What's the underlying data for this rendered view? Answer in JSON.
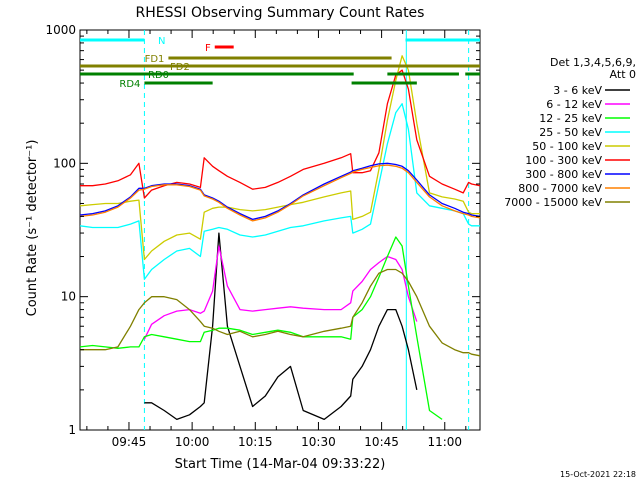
{
  "chart_data": {
    "type": "line",
    "title": "RHESSI Observing Summary Count Rates",
    "xlabel": "Start Time (14-Mar-04 09:33:22)",
    "ylabel": "Count Rate (s⁻¹ detector⁻¹)",
    "y_scale": "log",
    "ylim": [
      1,
      1000
    ],
    "xlim_minutes_from_start": [
      0,
      95
    ],
    "x_tick_labels": [
      "09:45",
      "10:00",
      "10:15",
      "10:30",
      "10:45",
      "11:00"
    ],
    "x_tick_minutes": [
      11.63,
      26.63,
      41.63,
      56.63,
      71.63,
      86.63
    ],
    "y_tick_labels": [
      "1",
      "10",
      "100",
      "1000"
    ],
    "y_tick_values": [
      1,
      10,
      100,
      1000
    ],
    "legend_title": "Det 1,3,4,5,6,9,\n Att 0",
    "legend_placement": "right",
    "timestamp": "15-Oct-2021 22:18",
    "time_x_minutes": [
      0,
      3,
      6,
      9,
      12,
      14,
      15.3,
      17,
      20,
      23,
      26,
      28.6,
      29.5,
      31.5,
      33,
      35,
      38,
      41,
      44,
      47,
      50,
      53,
      58,
      62,
      64.3,
      64.8,
      67,
      69,
      71,
      73,
      75,
      76.5,
      78,
      80,
      83,
      86,
      89,
      91,
      92.3,
      93,
      95
    ],
    "series": [
      {
        "name": "3 - 6 keV",
        "color": "#000000",
        "values": [
          null,
          null,
          null,
          null,
          null,
          null,
          1.6,
          1.6,
          1.4,
          1.2,
          1.3,
          1.5,
          1.6,
          6,
          30,
          6,
          3.0,
          1.5,
          1.8,
          2.5,
          3.0,
          1.4,
          1.2,
          1.5,
          1.8,
          2.4,
          3.0,
          4.0,
          6.0,
          8.0,
          8.0,
          6.0,
          4.0,
          2.0,
          null,
          null,
          null,
          null,
          null,
          null,
          null
        ]
      },
      {
        "name": "6 - 12 keV",
        "color": "#ff00ff",
        "values": [
          null,
          null,
          null,
          null,
          null,
          null,
          4.8,
          6.2,
          7.2,
          7.8,
          8.0,
          7.5,
          7.8,
          11,
          24,
          12,
          8.0,
          7.8,
          8.0,
          8.2,
          8.4,
          8.2,
          8.0,
          8.0,
          9.0,
          11,
          13,
          16,
          18,
          20,
          19,
          16,
          10,
          6.5,
          null,
          null,
          null,
          null,
          null,
          null,
          null
        ]
      },
      {
        "name": "12 - 25 keV",
        "color": "#00ff00",
        "values": [
          4.2,
          4.3,
          4.2,
          4.1,
          4.2,
          4.2,
          5.0,
          5.2,
          5.0,
          4.8,
          4.6,
          4.6,
          5.4,
          5.6,
          5.8,
          5.8,
          5.6,
          5.2,
          5.4,
          5.6,
          5.4,
          5.0,
          5.0,
          5.0,
          4.8,
          7.0,
          8.0,
          10,
          14,
          20,
          28,
          24,
          12,
          5.0,
          1.4,
          1.2,
          null,
          null,
          null,
          null,
          null
        ]
      },
      {
        "name": "25 - 50 keV",
        "color": "#00ffff",
        "values": [
          34,
          33,
          33,
          33,
          35,
          37,
          13.5,
          16,
          19,
          22,
          23,
          20,
          31,
          32,
          33,
          32,
          29,
          28,
          29,
          31,
          33,
          34,
          37,
          39,
          40,
          30,
          32,
          35,
          70,
          140,
          240,
          280,
          180,
          60,
          48,
          46,
          44,
          42,
          35,
          34,
          34
        ]
      },
      {
        "name": "50 - 100 keV",
        "color": "#cccc00",
        "values": [
          48,
          49,
          50,
          50,
          52,
          53,
          19,
          22,
          26,
          29,
          30,
          27,
          43,
          46,
          47,
          47,
          45,
          44,
          45,
          47,
          49,
          51,
          56,
          60,
          62,
          38,
          40,
          43,
          90,
          210,
          420,
          640,
          500,
          200,
          60,
          56,
          54,
          52,
          43,
          42,
          42
        ]
      },
      {
        "name": "100 - 300 keV",
        "color": "#ff0000",
        "values": [
          68,
          68,
          70,
          74,
          82,
          100,
          55,
          63,
          68,
          72,
          70,
          66,
          110,
          95,
          88,
          80,
          72,
          64,
          66,
          72,
          80,
          90,
          100,
          110,
          118,
          85,
          85,
          88,
          120,
          280,
          460,
          500,
          360,
          150,
          80,
          70,
          64,
          60,
          72,
          70,
          68
        ]
      },
      {
        "name": "300 - 800 keV",
        "color": "#0000ff",
        "values": [
          41,
          42,
          44,
          48,
          56,
          65,
          65,
          68,
          70,
          70,
          68,
          64,
          58,
          55,
          52,
          47,
          42,
          38,
          40,
          44,
          50,
          58,
          70,
          80,
          86,
          88,
          92,
          96,
          99,
          100,
          98,
          95,
          88,
          75,
          58,
          50,
          46,
          43,
          42,
          41,
          40
        ]
      },
      {
        "name": "800 - 7000 keV",
        "color": "#ff8000",
        "values": [
          40,
          41,
          43,
          47,
          55,
          63,
          64,
          67,
          69,
          69,
          67,
          63,
          57,
          54,
          51,
          46,
          41,
          37,
          39,
          43,
          49,
          57,
          68,
          78,
          84,
          86,
          90,
          93,
          96,
          97,
          95,
          92,
          85,
          72,
          56,
          48,
          44,
          42,
          41,
          40,
          39
        ]
      },
      {
        "name": "7000 - 15000 keV",
        "color": "#808000",
        "values": [
          4.0,
          4.0,
          4.0,
          4.2,
          6.0,
          8.0,
          9.0,
          10,
          10,
          9.5,
          8.0,
          6.5,
          6.0,
          5.8,
          5.5,
          5.2,
          5.5,
          5.0,
          5.2,
          5.5,
          5.2,
          5.0,
          5.5,
          5.8,
          6.0,
          7.0,
          9.0,
          12,
          15,
          16,
          16,
          15,
          13,
          10,
          6.0,
          4.5,
          4.0,
          3.8,
          3.8,
          3.7,
          3.6
        ]
      }
    ],
    "status_flags": [
      {
        "label": "N",
        "color": "#00ffff",
        "start": 0,
        "end": 15.3,
        "level": 0
      },
      {
        "label": "",
        "color": "#00ffff",
        "start": 77.3,
        "end": 95,
        "level": 0
      },
      {
        "label": "F",
        "color": "#ff0000",
        "start": 32,
        "end": 36.5,
        "level": 1
      },
      {
        "label": "FD1",
        "color": "#808000",
        "start": 21,
        "end": 74,
        "level": 2
      },
      {
        "label": "FD2",
        "color": "#808000",
        "start": 0,
        "end": 95,
        "level": 3
      },
      {
        "label": "RD0",
        "color": "#008000",
        "start": 0,
        "end": 65,
        "level": 4
      },
      {
        "label": "",
        "color": "#008000",
        "start": 73,
        "end": 90,
        "level": 4
      },
      {
        "label": "",
        "color": "#008000",
        "start": 91.5,
        "end": 95,
        "level": 4
      },
      {
        "label": "RD4",
        "color": "#008000",
        "start": 15.3,
        "end": 31.5,
        "level": 5
      },
      {
        "label": "",
        "color": "#008000",
        "start": 64.5,
        "end": 80,
        "level": 5
      }
    ],
    "dashed_markers_minutes": [
      15.3,
      92.3
    ],
    "solid_markers_minutes": [
      77.5
    ]
  }
}
